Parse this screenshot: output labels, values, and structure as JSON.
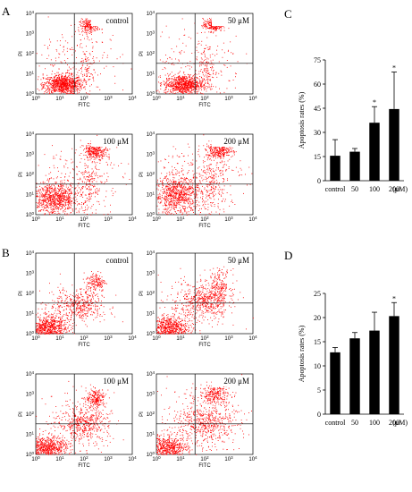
{
  "panels": {
    "A": {
      "letter": "A",
      "plots": [
        {
          "label": "control",
          "x_axis_label": "FITC",
          "y_axis_label": "PI"
        },
        {
          "label": "50 μM",
          "x_axis_label": "FITC",
          "y_axis_label": "PI"
        },
        {
          "label": "100 μM",
          "x_axis_label": "FITC",
          "y_axis_label": "PI"
        },
        {
          "label": "200 μM",
          "x_axis_label": "FITC",
          "y_axis_label": "PI"
        }
      ]
    },
    "B": {
      "letter": "B",
      "plots": [
        {
          "label": "control",
          "x_axis_label": "FITC",
          "y_axis_label": "PI"
        },
        {
          "label": "50 μM",
          "x_axis_label": "FITC",
          "y_axis_label": "PI"
        },
        {
          "label": "100 μM",
          "x_axis_label": "FITC",
          "y_axis_label": "PI"
        },
        {
          "label": "200 μM",
          "x_axis_label": "FITC",
          "y_axis_label": "PI"
        }
      ]
    },
    "C": {
      "letter": "C"
    },
    "D": {
      "letter": "D"
    }
  },
  "flow_axis_ticks": {
    "x": [
      {
        "base": "10",
        "exp": "0"
      },
      {
        "base": "10",
        "exp": "1"
      },
      {
        "base": "10",
        "exp": "2"
      },
      {
        "base": "10",
        "exp": "3"
      },
      {
        "base": "10",
        "exp": "4"
      }
    ],
    "y": [
      {
        "base": "10",
        "exp": "0"
      },
      {
        "base": "10",
        "exp": "1"
      },
      {
        "base": "10",
        "exp": "2"
      },
      {
        "base": "10",
        "exp": "3"
      },
      {
        "base": "10",
        "exp": "4"
      }
    ]
  },
  "colors": {
    "scatter": "#ff0000",
    "bar": "#000000",
    "axis": "#000000"
  },
  "chart_data": [
    {
      "panel": "C",
      "type": "bar",
      "categories": [
        "control",
        "50",
        "100",
        "200"
      ],
      "unit_label": "(μM)",
      "values": [
        15.5,
        18,
        36,
        44.5
      ],
      "error": [
        10,
        2,
        10,
        23
      ],
      "significance": [
        "",
        "",
        "*",
        "*"
      ],
      "ylabel": "Apoptosis rates (%)",
      "ylim": [
        0,
        75
      ],
      "yticks": [
        0,
        15,
        30,
        45,
        60,
        75
      ]
    },
    {
      "panel": "D",
      "type": "bar",
      "categories": [
        "control",
        "50",
        "100",
        "200"
      ],
      "unit_label": "(μM)",
      "values": [
        12.8,
        15.7,
        17.3,
        20.3
      ],
      "error": [
        1,
        1.2,
        3.8,
        2.8
      ],
      "significance": [
        "",
        "",
        "",
        "*"
      ],
      "ylabel": "Apoptosis rates (%)",
      "ylim": [
        0,
        25
      ],
      "yticks": [
        0,
        5,
        10,
        15,
        20,
        25
      ]
    }
  ]
}
